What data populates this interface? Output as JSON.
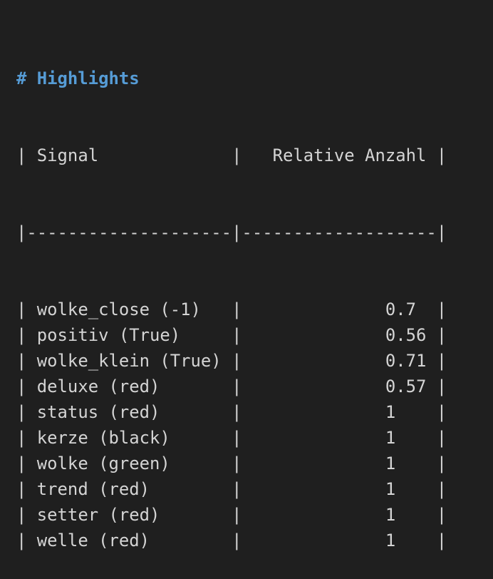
{
  "heading": "# Highlights",
  "table": {
    "headers": [
      "Signal",
      "Relative Anzahl"
    ],
    "rows": [
      {
        "signal": "wolke_close (-1)",
        "value": "0.7"
      },
      {
        "signal": "positiv (True)",
        "value": "0.56"
      },
      {
        "signal": "wolke_klein (True)",
        "value": "0.71"
      },
      {
        "signal": "deluxe (red)",
        "value": "0.57"
      },
      {
        "signal": "status (red)",
        "value": "1"
      },
      {
        "signal": "kerze (black)",
        "value": "1"
      },
      {
        "signal": "wolke (green)",
        "value": "1"
      },
      {
        "signal": "trend (red)",
        "value": "1"
      },
      {
        "signal": "setter (red)",
        "value": "1"
      },
      {
        "signal": "welle (red)",
        "value": "1"
      }
    ]
  },
  "colors": {
    "background": "#1f1f1f",
    "heading": "#569cd6",
    "text": "#d4d4d4"
  }
}
